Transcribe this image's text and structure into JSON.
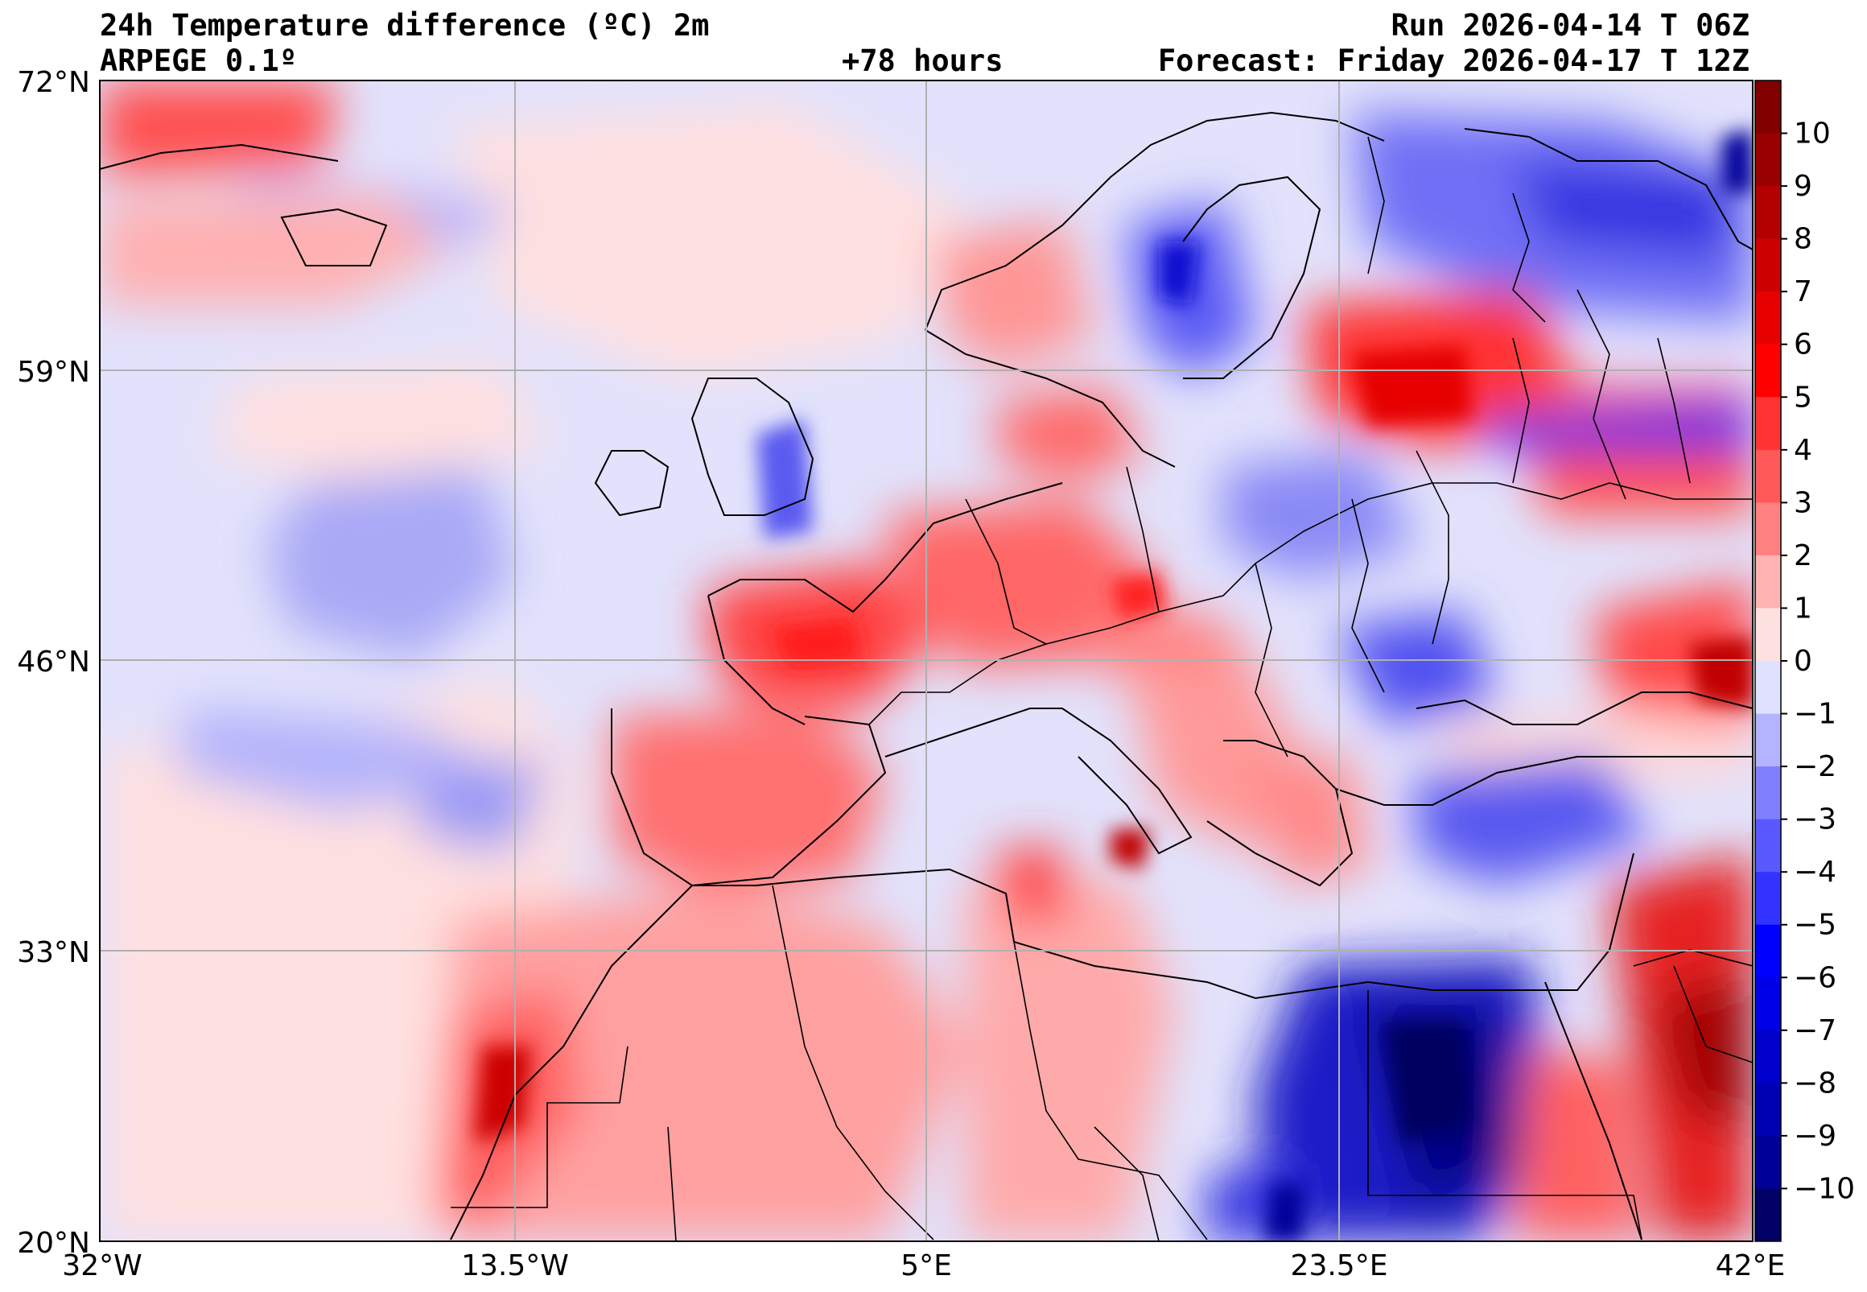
{
  "header": {
    "title": "24h Temperature difference (ºC) 2m",
    "model": "ARPEGE 0.1º",
    "lead": "+78 hours",
    "run": "Run 2026-04-14 T 06Z",
    "forecast": "Forecast: Friday 2026-04-17 T 12Z"
  },
  "axes": {
    "lat_labels": [
      "72°N",
      "59°N",
      "46°N",
      "33°N",
      "20°N"
    ],
    "lon_labels": [
      "32°W",
      "13.5°W",
      "5°E",
      "23.5°E",
      "42°E"
    ]
  },
  "colorbar": {
    "tick_labels": [
      "10",
      "9",
      "8",
      "7",
      "6",
      "5",
      "4",
      "3",
      "2",
      "1",
      "0",
      "−1",
      "−2",
      "−3",
      "−4",
      "−5",
      "−6",
      "−7",
      "−8",
      "−9",
      "−10"
    ],
    "colors": [
      "#800000",
      "#990000",
      "#b30000",
      "#cc0000",
      "#e60000",
      "#ff0000",
      "#ff3333",
      "#ff5959",
      "#ff8080",
      "#ffb3b3",
      "#ffe0e0",
      "#e0e0ff",
      "#b3b3ff",
      "#8080ff",
      "#5959ff",
      "#3333ff",
      "#0000ff",
      "#0000e6",
      "#0000cc",
      "#0000b3",
      "#000099",
      "#000066"
    ]
  }
}
